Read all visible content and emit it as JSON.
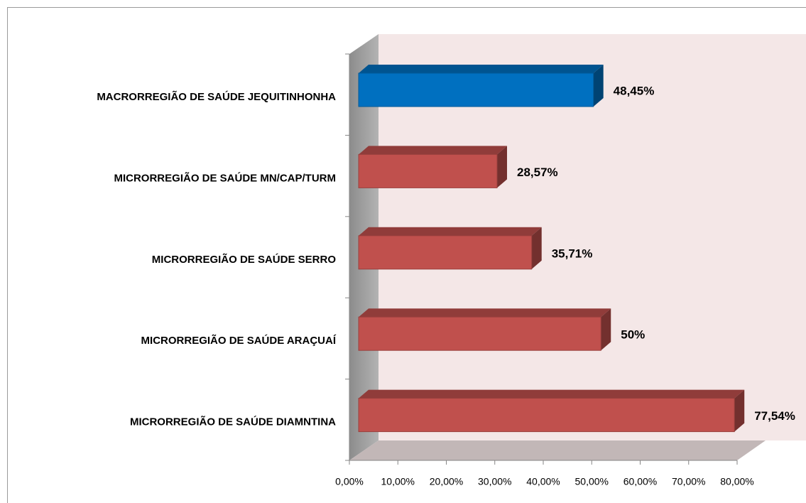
{
  "chart_data": {
    "type": "bar",
    "orientation": "horizontal",
    "categories": [
      "MACRORREGIÃO DE SAÚDE  JEQUITINHONHA",
      "MICRORREGIÃO DE SAÚDE MN/CAP/TURM",
      "MICRORREGIÃO DE SAÚDE SERRO",
      "MICRORREGIÃO DE SAÚDE ARAÇUAÍ",
      "MICRORREGIÃO DE SAÚDE DIAMNTINA"
    ],
    "values": [
      48.45,
      28.57,
      35.71,
      50,
      77.54
    ],
    "value_labels": [
      "48,45%",
      "28,57%",
      "35,71%",
      "50%",
      "77,54%"
    ],
    "colors": [
      "#0070c0",
      "#c0504d",
      "#c0504d",
      "#c0504d",
      "#c0504d"
    ],
    "xlim": [
      0,
      80
    ],
    "xticks": [
      {
        "value": 0,
        "label": "0,00%"
      },
      {
        "value": 10,
        "label": "10,00%"
      },
      {
        "value": 20,
        "label": "20,00%"
      },
      {
        "value": 30,
        "label": "30,00%"
      },
      {
        "value": 40,
        "label": "40,00%"
      },
      {
        "value": 50,
        "label": "50,00%"
      },
      {
        "value": 60,
        "label": "60,00%"
      },
      {
        "value": 70,
        "label": "70,00%"
      },
      {
        "value": 80,
        "label": "80,00%"
      }
    ],
    "grid": false,
    "three_d": true
  }
}
